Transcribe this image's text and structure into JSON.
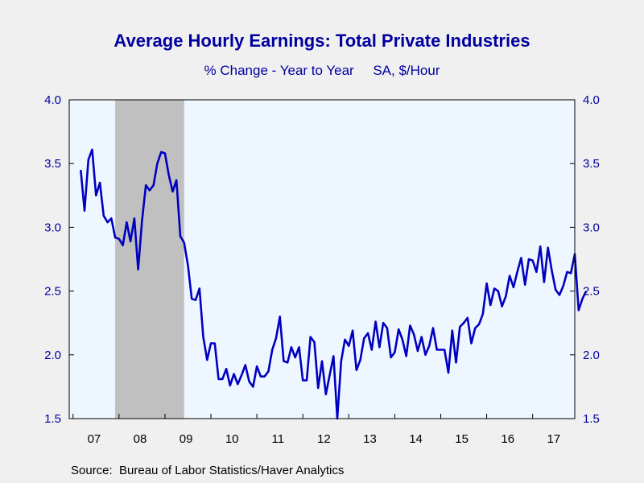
{
  "chart_data": {
    "type": "line",
    "title": "Average Hourly Earnings: Total Private Industries",
    "subtitle": "% Change - Year to Year     SA, $/Hour",
    "source": "Source:  Bureau of Labor Statistics/Haver Analytics",
    "ylim": [
      1.5,
      4.0
    ],
    "y_ticks": [
      "1.5",
      "2.0",
      "2.5",
      "3.0",
      "3.5",
      "4.0"
    ],
    "x_tick_labels": [
      "07",
      "08",
      "09",
      "10",
      "11",
      "12",
      "13",
      "14",
      "15",
      "16",
      "17"
    ],
    "x_range": [
      "2006-12",
      "2017-12"
    ],
    "recession_shading": {
      "start": "2007-12",
      "end": "2009-06",
      "color": "#c0c0c0"
    },
    "plot_background": "#eef6ff",
    "series": [
      {
        "color": "#0000c0",
        "x_start": "2007-03",
        "frequency": "monthly",
        "values": [
          3.45,
          3.13,
          3.53,
          3.61,
          3.25,
          3.35,
          3.09,
          3.04,
          3.07,
          2.92,
          2.91,
          2.86,
          3.04,
          2.89,
          3.07,
          2.67,
          3.05,
          3.33,
          3.29,
          3.33,
          3.5,
          3.59,
          3.58,
          3.41,
          3.28,
          3.37,
          2.93,
          2.88,
          2.7,
          2.44,
          2.43,
          2.52,
          2.14,
          1.96,
          2.09,
          2.09,
          1.81,
          1.81,
          1.89,
          1.76,
          1.85,
          1.77,
          1.84,
          1.92,
          1.79,
          1.75,
          1.91,
          1.83,
          1.83,
          1.87,
          2.04,
          2.13,
          2.3,
          1.95,
          1.94,
          2.06,
          1.98,
          2.06,
          1.8,
          1.8,
          2.14,
          2.1,
          1.74,
          1.95,
          1.69,
          1.84,
          1.99,
          1.5,
          1.95,
          2.12,
          2.07,
          2.19,
          1.88,
          1.96,
          2.13,
          2.17,
          2.04,
          2.26,
          2.06,
          2.25,
          2.21,
          1.98,
          2.02,
          2.2,
          2.12,
          1.99,
          2.23,
          2.16,
          2.03,
          2.14,
          2.0,
          2.07,
          2.21,
          2.04,
          2.04,
          2.04,
          1.86,
          2.19,
          1.94,
          2.22,
          2.25,
          2.29,
          2.09,
          2.21,
          2.24,
          2.32,
          2.56,
          2.39,
          2.52,
          2.5,
          2.38,
          2.46,
          2.62,
          2.53,
          2.65,
          2.76,
          2.55,
          2.75,
          2.74,
          2.65,
          2.85,
          2.57,
          2.84,
          2.66,
          2.51,
          2.47,
          2.54,
          2.65,
          2.64,
          2.79,
          2.35,
          2.44,
          2.5
        ]
      }
    ]
  }
}
